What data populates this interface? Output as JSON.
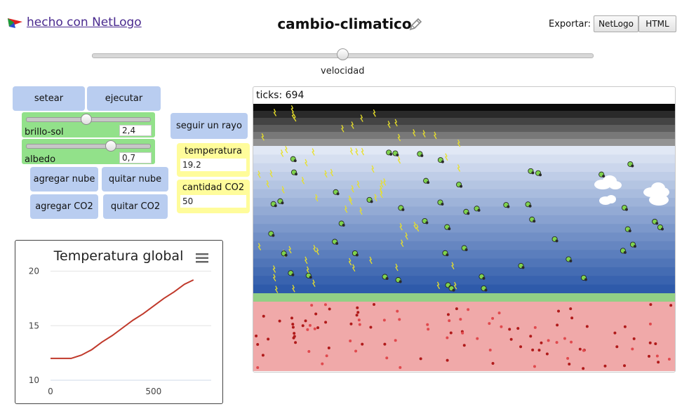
{
  "header": {
    "logo_text": "hecho con NetLogo",
    "title": "cambio-climatico",
    "export_label": "Exportar:",
    "export_buttons": [
      "NetLogo",
      "HTML"
    ]
  },
  "speed": {
    "label": "velocidad",
    "value": 0.5
  },
  "buttons": {
    "setup": "setear",
    "go": "ejecutar",
    "follow": "seguir un rayo",
    "add_cloud": "agregar nube",
    "remove_cloud": "quitar nube",
    "add_co2": "agregar CO2",
    "remove_co2": "quitar CO2"
  },
  "sliders": [
    {
      "name": "brillo-sol",
      "value": "2,4",
      "fraction": 0.6
    },
    {
      "name": "albedo",
      "value": "0,7",
      "fraction": 0.7
    }
  ],
  "monitors": [
    {
      "label": "temperatura",
      "value": "19.2"
    },
    {
      "label": "cantidad CO2",
      "value": "50"
    }
  ],
  "world": {
    "ticks_text": "ticks: 694"
  },
  "chart_data": {
    "type": "line",
    "title": "Temperatura global",
    "menu_icon": "hamburger-menu-icon",
    "xlim": [
      0,
      780
    ],
    "ylim": [
      10,
      21
    ],
    "xticks": [
      0,
      500
    ],
    "yticks": [
      10,
      15,
      20
    ],
    "series": [
      {
        "name": "temperatura",
        "color": "#c0392b",
        "x": [
          0,
          50,
          100,
          150,
          200,
          250,
          300,
          350,
          400,
          450,
          500,
          550,
          600,
          650,
          694
        ],
        "y": [
          12.0,
          12.0,
          12.0,
          12.3,
          12.8,
          13.5,
          14.1,
          14.8,
          15.5,
          16.1,
          16.8,
          17.5,
          18.1,
          18.8,
          19.2
        ]
      }
    ]
  },
  "colors": {
    "button": "#b9cdf0",
    "slider": "#92e18a",
    "monitor": "#fffc9b",
    "ground": "#f0a9a9",
    "grass": "#92cf85"
  }
}
